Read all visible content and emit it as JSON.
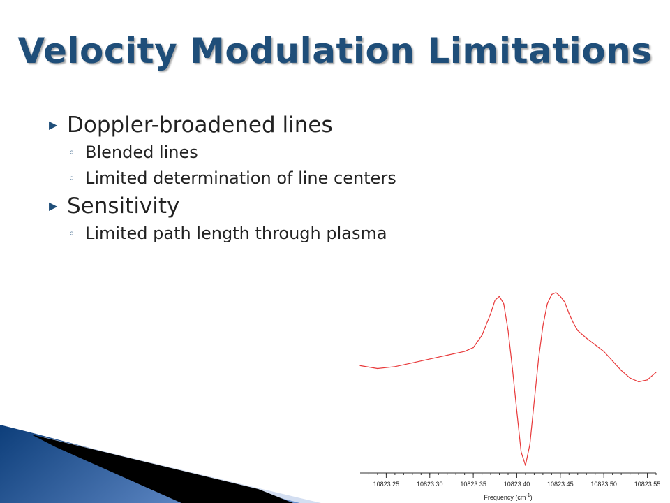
{
  "slide": {
    "title": "Velocity Modulation Limitations",
    "bullets": [
      {
        "text": "Doppler-broadened lines",
        "sub": [
          "Blended lines",
          "Limited determination of line centers"
        ]
      },
      {
        "text": "Sensitivity",
        "sub": [
          "Limited path length through plasma"
        ]
      }
    ],
    "bullet_icon": "triangle-right-icon",
    "sub_bullet_icon": "circle-icon",
    "title_color": "#1f4e79",
    "decoration_colors": [
      "#0d3e7a",
      "#6b93d0",
      "#000000"
    ]
  },
  "chart_data": {
    "type": "line",
    "xlabel": "Frequency (cm",
    "xlabel_superscript": "-1",
    "xlabel_suffix": ")",
    "xlim": [
      10823.22,
      10823.56
    ],
    "ylim": [
      -1.1,
      0.85
    ],
    "x_ticks": [
      10823.25,
      10823.3,
      10823.35,
      10823.4,
      10823.45,
      10823.5,
      10823.55
    ],
    "x_tick_labels": [
      "10823.25",
      "10823.30",
      "10823.35",
      "10823.40",
      "10823.45",
      "10823.50",
      "10823.55"
    ],
    "series": [
      {
        "color": "#e8393a",
        "x": [
          10823.22,
          10823.24,
          10823.26,
          10823.28,
          10823.3,
          10823.32,
          10823.34,
          10823.35,
          10823.36,
          10823.37,
          10823.375,
          10823.38,
          10823.385,
          10823.39,
          10823.395,
          10823.4,
          10823.405,
          10823.41,
          10823.415,
          10823.42,
          10823.425,
          10823.43,
          10823.435,
          10823.44,
          10823.445,
          10823.45,
          10823.455,
          10823.46,
          10823.465,
          10823.47,
          10823.48,
          10823.49,
          10823.5,
          10823.51,
          10823.52,
          10823.53,
          10823.54,
          10823.55,
          10823.56
        ],
        "y": [
          0.03,
          0.0,
          0.02,
          0.06,
          0.1,
          0.14,
          0.18,
          0.22,
          0.35,
          0.58,
          0.72,
          0.76,
          0.68,
          0.4,
          0.0,
          -0.45,
          -0.88,
          -1.02,
          -0.8,
          -0.35,
          0.1,
          0.45,
          0.68,
          0.78,
          0.8,
          0.76,
          0.7,
          0.58,
          0.48,
          0.4,
          0.32,
          0.25,
          0.18,
          0.08,
          -0.02,
          -0.1,
          -0.14,
          -0.12,
          -0.04
        ]
      }
    ],
    "grid": false
  }
}
